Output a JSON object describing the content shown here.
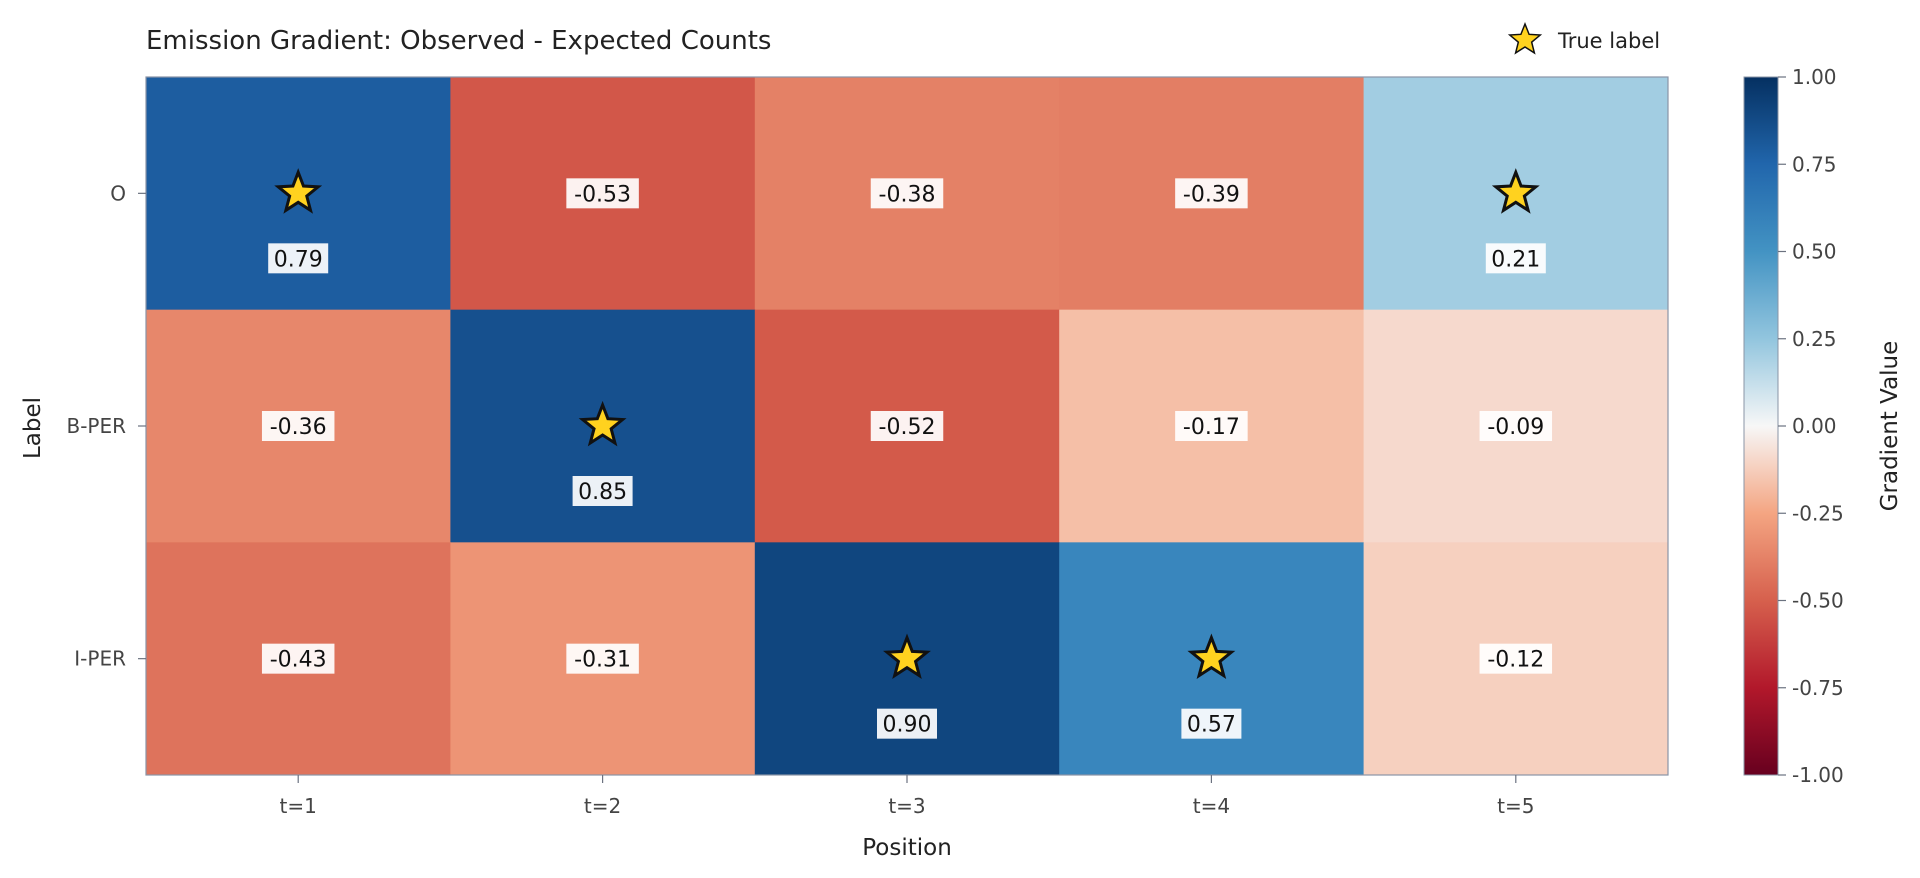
{
  "chart_data": {
    "type": "heatmap",
    "title": "Emission Gradient: Observed - Expected Counts",
    "xlabel": "Position",
    "ylabel": "Label",
    "x_categories": [
      "t=1",
      "t=2",
      "t=3",
      "t=4",
      "t=5"
    ],
    "y_categories": [
      "O",
      "B-PER",
      "I-PER"
    ],
    "values": [
      [
        0.79,
        -0.53,
        -0.38,
        -0.39,
        0.21
      ],
      [
        -0.36,
        0.85,
        -0.52,
        -0.17,
        -0.09
      ],
      [
        -0.43,
        -0.31,
        0.9,
        0.57,
        -0.12
      ]
    ],
    "value_labels": [
      [
        "0.79",
        "-0.53",
        "-0.38",
        "-0.39",
        "0.21"
      ],
      [
        "-0.36",
        "0.85",
        "-0.52",
        "-0.17",
        "-0.09"
      ],
      [
        "-0.43",
        "-0.31",
        "0.90",
        "0.57",
        "-0.12"
      ]
    ],
    "true_labels": [
      [
        0,
        0
      ],
      [
        1,
        1
      ],
      [
        2,
        2
      ],
      [
        2,
        3
      ],
      [
        0,
        4
      ]
    ],
    "legend": {
      "label": "True label",
      "marker": "star-icon",
      "color": "#ffd21f",
      "placement": "top-right"
    },
    "colorbar": {
      "label": "Gradient Value",
      "range": [
        -1.0,
        1.0
      ],
      "colormap": "RdBu",
      "ticks": [
        "1.00",
        "0.75",
        "0.50",
        "0.25",
        "0.00",
        "-0.25",
        "-0.50",
        "-0.75",
        "-1.00"
      ]
    },
    "grid": false
  }
}
